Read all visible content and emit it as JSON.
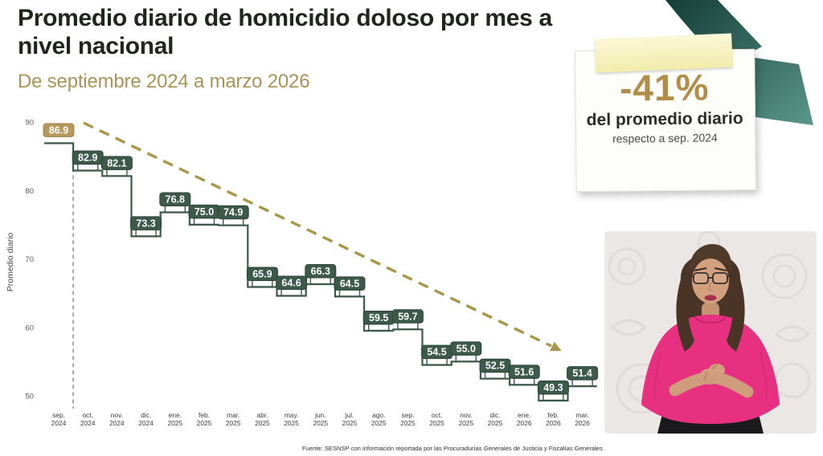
{
  "slide": {
    "title": "Promedio diario de homicidio doloso por mes a nivel nacional",
    "subtitle": "De septiembre 2024 a marzo 2026",
    "source": "Fuente: SESNSP con información reportada por las Procuradurías Generales de Justicia y Fiscalías Generales."
  },
  "callout": {
    "value": "-41%",
    "line1": "del promedio diario",
    "line2": "respecto a sep. 2024"
  },
  "chart_data": {
    "type": "step-line",
    "title": "Promedio diario de homicidio doloso por mes a nivel nacional",
    "subtitle": "De septiembre 2024 a marzo 2026",
    "ylabel": "Promedio diario",
    "xlabel": "",
    "yticks": [
      90,
      80,
      70,
      60,
      50
    ],
    "ylim": [
      48,
      92
    ],
    "grid": false,
    "legend_position": "none",
    "trend_arrow": true,
    "categories": [
      "sep. 2024",
      "oct. 2024",
      "nov. 2024",
      "dic. 2024",
      "ene. 2025",
      "feb. 2025",
      "mar. 2025",
      "abr. 2025",
      "may. 2025",
      "jun. 2025",
      "jul. 2025",
      "ago. 2025",
      "sep. 2025",
      "oct. 2025",
      "nov. 2025",
      "dic. 2025",
      "ene. 2026",
      "feb. 2026",
      "mar. 2026"
    ],
    "values": [
      86.9,
      82.9,
      82.1,
      73.3,
      76.8,
      75.0,
      74.9,
      65.9,
      64.6,
      66.3,
      64.5,
      59.5,
      59.7,
      54.5,
      55.0,
      52.5,
      51.6,
      49.3,
      51.4
    ],
    "value_labels": [
      "86.9",
      "82.9",
      "82.1",
      "73.3",
      "76.8",
      "75.0",
      "74.9",
      "65.9",
      "64.6",
      "66.3",
      "64.5",
      "59.5",
      "59.7",
      "54.5",
      "55.0",
      "52.5",
      "51.6",
      "49.3",
      "51.4"
    ],
    "colors": {
      "step": "#3d594b",
      "label_box": "#3d594b",
      "first_label_box": "#b6985c",
      "trend": "#a8964a",
      "tick_text": "#5a5a5a"
    }
  }
}
